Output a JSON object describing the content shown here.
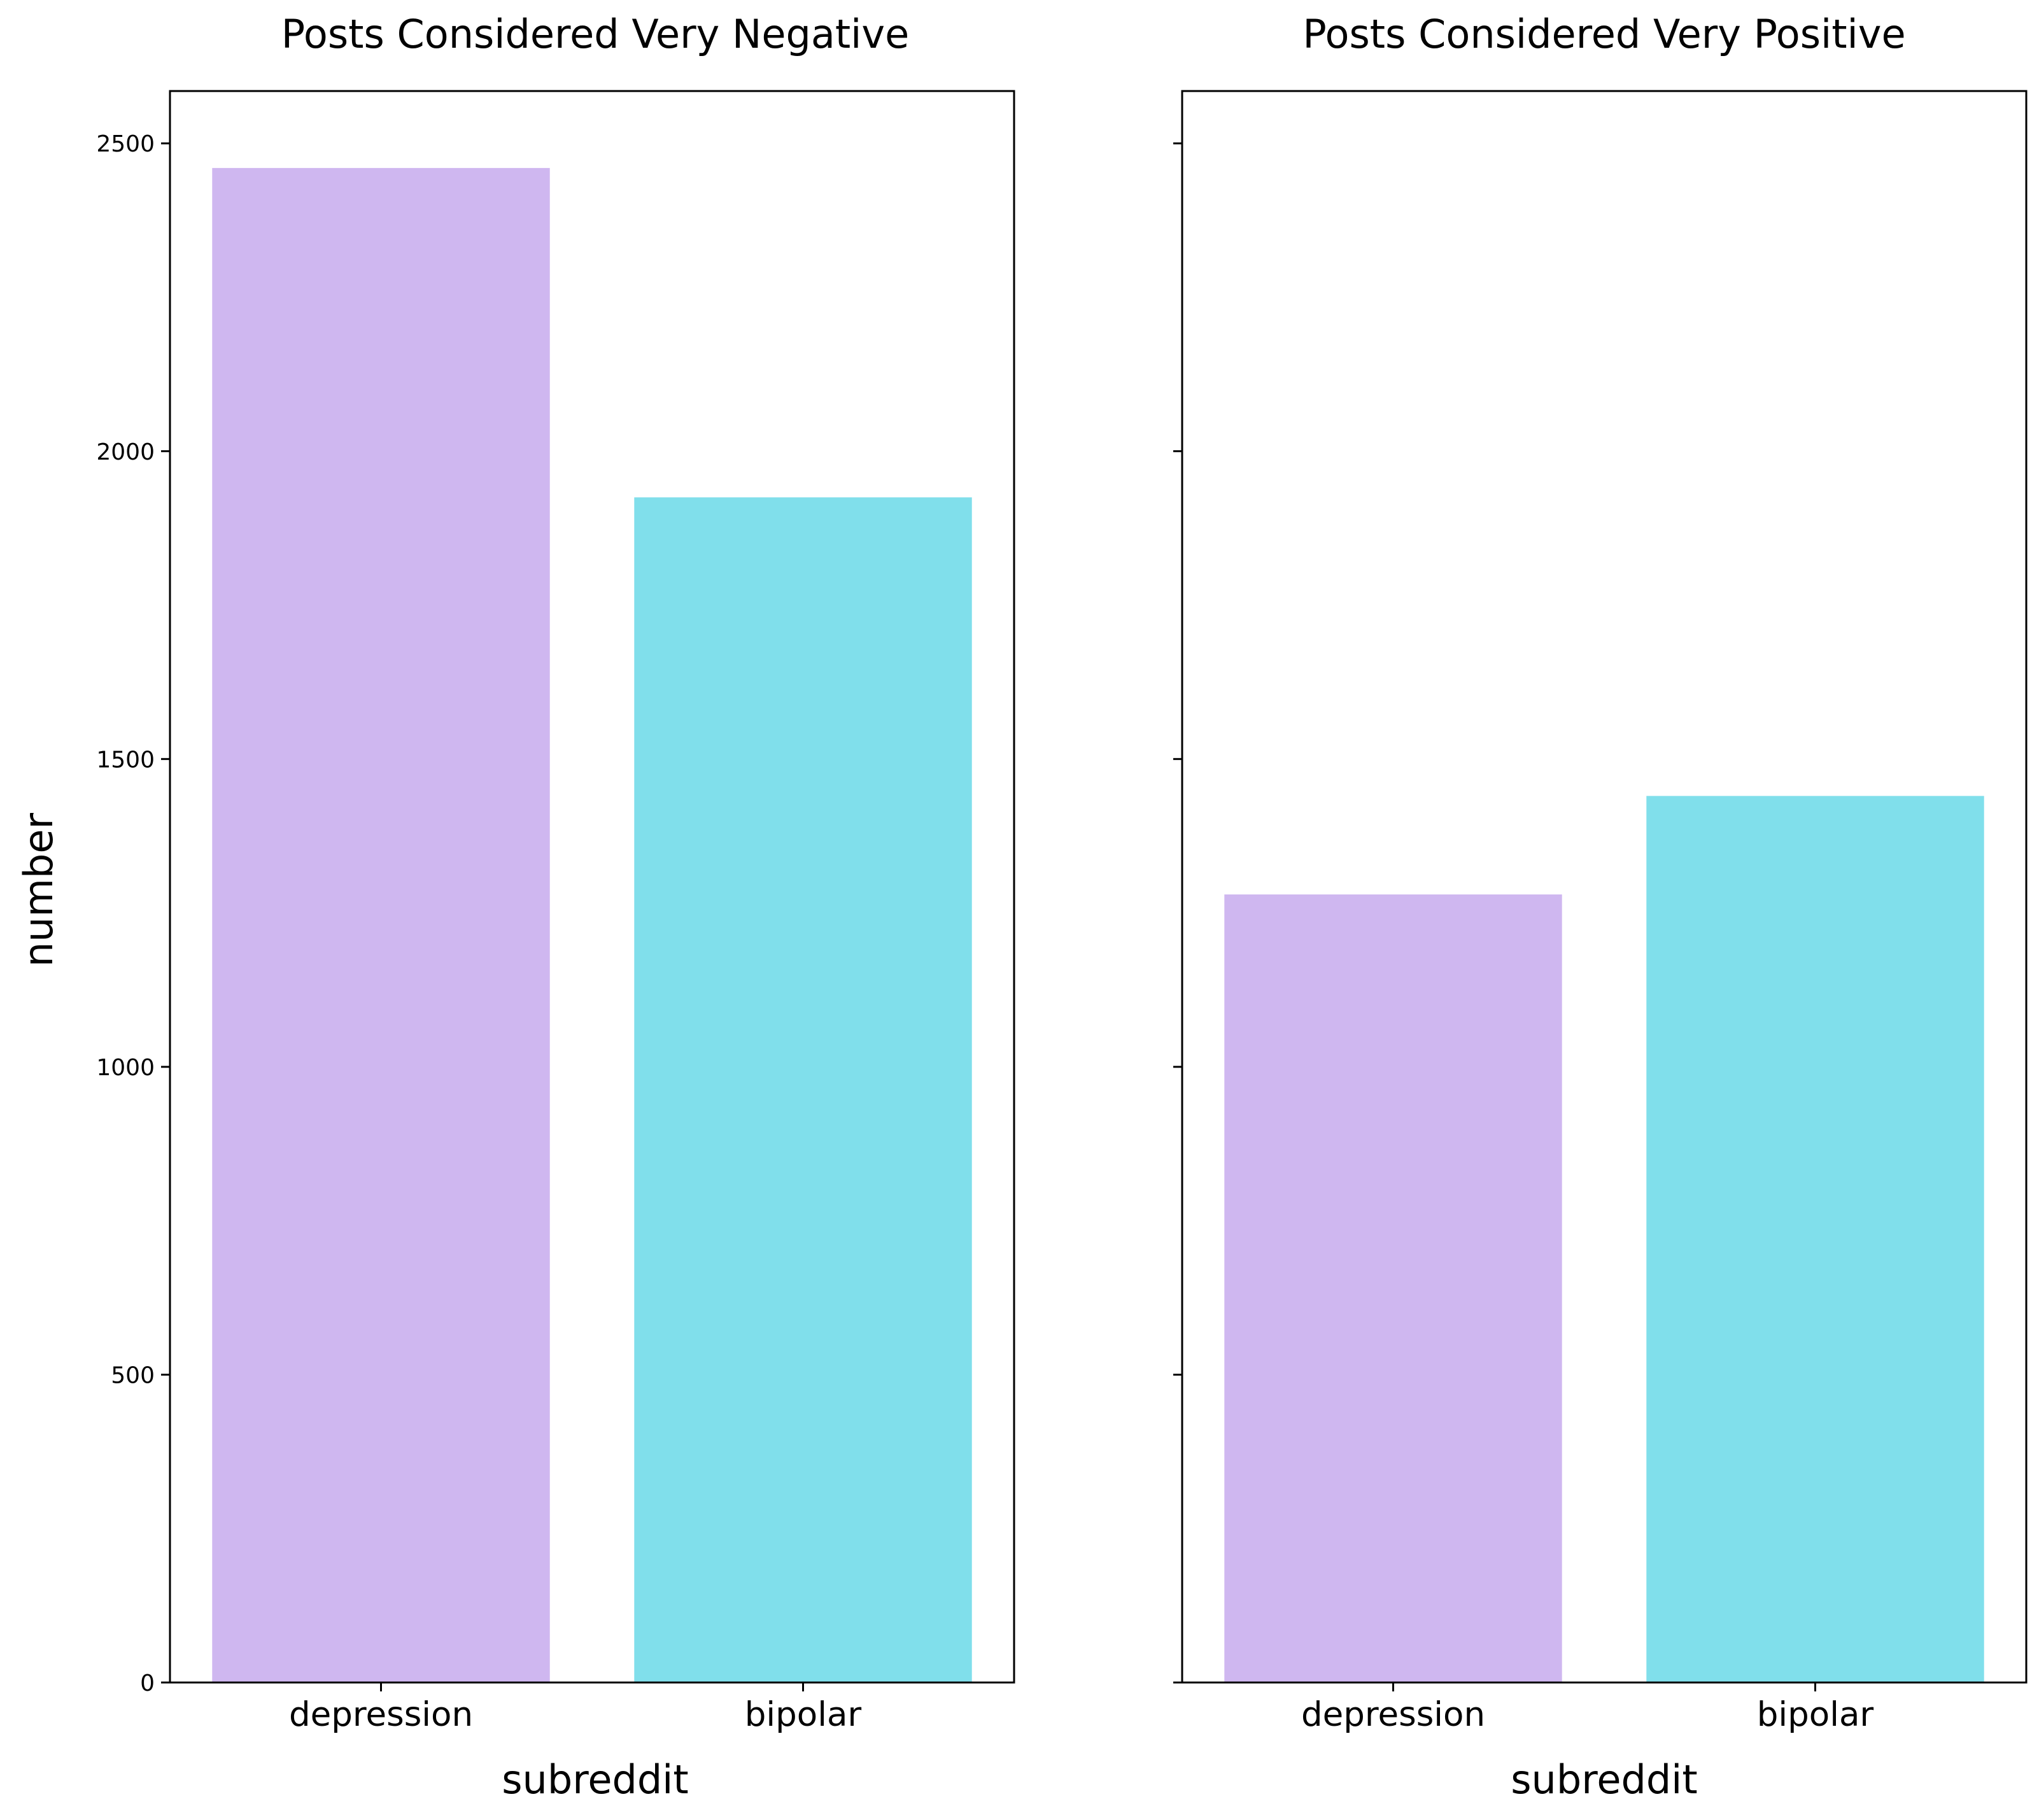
{
  "chart_data": [
    {
      "type": "bar",
      "title": "Posts Considered Very Negative",
      "xlabel": "subreddit",
      "ylabel": "number",
      "categories": [
        "depression",
        "bipolar"
      ],
      "values": [
        2460,
        1925
      ],
      "colors": [
        "#cfb7f0",
        "#80dfeb"
      ],
      "ylim": [
        0,
        2585
      ],
      "yticks": [
        0,
        500,
        1000,
        1500,
        2000,
        2500
      ],
      "show_ytick_labels": true,
      "grid": false,
      "legend": "none"
    },
    {
      "type": "bar",
      "title": "Posts Considered Very Positive",
      "xlabel": "subreddit",
      "ylabel": "",
      "categories": [
        "depression",
        "bipolar"
      ],
      "values": [
        1280,
        1440
      ],
      "colors": [
        "#cfb7f0",
        "#80dfeb"
      ],
      "ylim": [
        0,
        2585
      ],
      "yticks": [
        0,
        500,
        1000,
        1500,
        2000,
        2500
      ],
      "show_ytick_labels": false,
      "grid": false,
      "legend": "none"
    }
  ]
}
